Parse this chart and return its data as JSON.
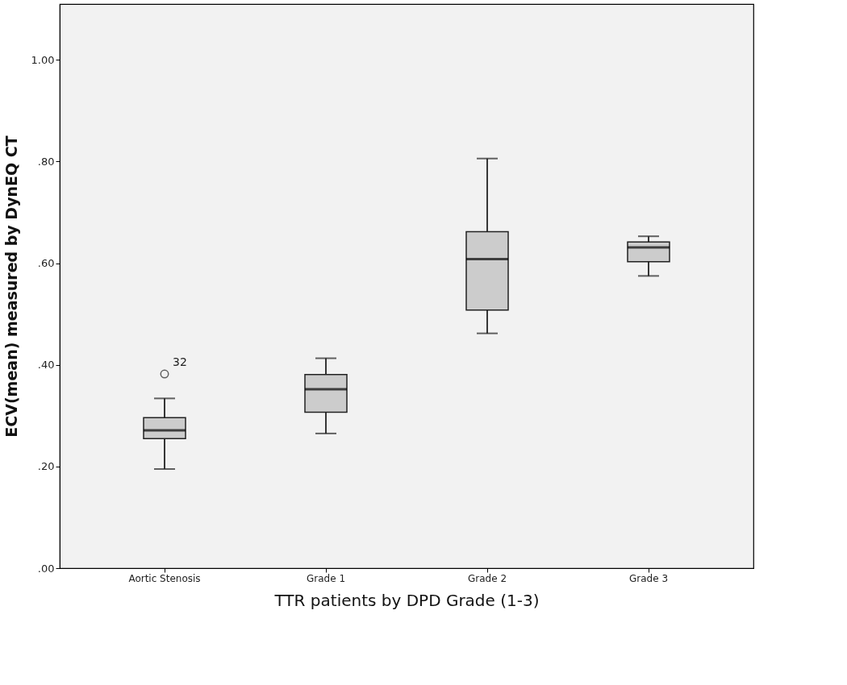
{
  "chart_data": {
    "type": "box",
    "xlabel": "TTR patients by DPD Grade (1-3)",
    "ylabel": "ECV(mean) measured by DynEQ CT",
    "categories": [
      "Aortic Stenosis",
      "Grade 1",
      "Grade 2",
      "Grade 3"
    ],
    "color": "#cccccc",
    "boxes": [
      {
        "low": 0.195,
        "q1": 0.255,
        "median": 0.271,
        "q3": 0.296,
        "high": 0.334,
        "outliers": [
          0.382
        ]
      },
      {
        "low": 0.265,
        "q1": 0.307,
        "median": 0.352,
        "q3": 0.381,
        "high": 0.413
      },
      {
        "low": 0.462,
        "q1": 0.508,
        "median": 0.608,
        "q3": 0.662,
        "high": 0.806
      },
      {
        "low": 0.575,
        "q1": 0.603,
        "median": 0.631,
        "q3": 0.642,
        "high": 0.653
      }
    ],
    "ylim": [
      0,
      1.11
    ],
    "yticks": [
      {
        "value": 0,
        "label": ".00"
      },
      {
        "value": 0.2,
        "label": ".20"
      },
      {
        "value": 0.4,
        "label": ".40"
      },
      {
        "value": 0.6,
        "label": ".60"
      },
      {
        "value": 0.8,
        "label": ".80"
      },
      {
        "value": 1.0,
        "label": "1.00"
      }
    ],
    "grid": false,
    "annotations": [
      "32"
    ]
  }
}
